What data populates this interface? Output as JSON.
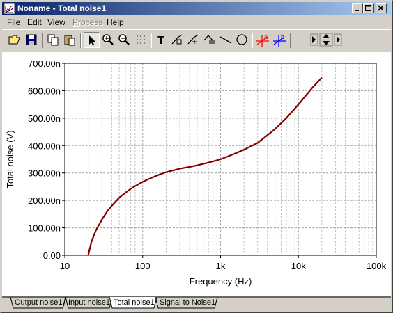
{
  "window": {
    "title": "Noname - Total noise1"
  },
  "menu": [
    {
      "label": "File",
      "disabled": false
    },
    {
      "label": "Edit",
      "disabled": false
    },
    {
      "label": "View",
      "disabled": false
    },
    {
      "label": "Process",
      "disabled": true
    },
    {
      "label": "Help",
      "disabled": false
    }
  ],
  "toolbar": {
    "buttons": [
      "open-icon",
      "save-icon",
      "copy-icon",
      "paste-icon",
      "pointer-icon",
      "zoom-in-icon",
      "zoom-out-icon",
      "grid-icon",
      "text-icon",
      "cursor-tool-1-icon",
      "cursor-tool-2-icon",
      "cursor-tool-3-icon",
      "line-icon",
      "circle-icon",
      "cursor-a-icon",
      "cursor-b-icon",
      "move-arrows-icon"
    ],
    "text_tool_glyph": "T",
    "cursor_a_label": "a",
    "cursor_b_label": "b",
    "colors": {
      "cursor_a": "#ff0000",
      "cursor_b": "#0000ff"
    }
  },
  "tabs": [
    {
      "label": "Output noise1",
      "active": false
    },
    {
      "label": "Input noise1",
      "active": false
    },
    {
      "label": "Total noise1",
      "active": true
    },
    {
      "label": "Signal to Noise1",
      "active": false
    }
  ],
  "chart_data": {
    "type": "line",
    "title": "",
    "xlabel": "Frequency (Hz)",
    "ylabel": "Total noise (V)",
    "xscale": "log",
    "xlim": [
      10,
      100000
    ],
    "ylim": [
      0,
      700
    ],
    "x_ticks": [
      10,
      100,
      1000,
      10000,
      100000
    ],
    "x_tick_labels": [
      "10",
      "100",
      "1k",
      "10k",
      "100k"
    ],
    "y_ticks": [
      0,
      100,
      200,
      300,
      400,
      500,
      600,
      700
    ],
    "y_tick_labels": [
      "0.00",
      "100.00n",
      "200.00n",
      "300.00n",
      "400.00n",
      "500.00n",
      "600.00n",
      "700.00n"
    ],
    "grid": true,
    "line_color": "#800000",
    "series": [
      {
        "x": [
          20,
          22,
          25,
          30,
          35,
          40,
          50,
          60,
          70,
          80,
          100,
          120,
          150,
          200,
          250,
          300,
          400,
          500,
          700,
          1000,
          1500,
          2000,
          3000,
          4000,
          5000,
          7000,
          10000,
          15000,
          20000
        ],
        "y": [
          0,
          50,
          90,
          130,
          160,
          180,
          210,
          228,
          242,
          252,
          268,
          278,
          290,
          303,
          310,
          316,
          322,
          328,
          338,
          350,
          370,
          385,
          410,
          438,
          460,
          500,
          550,
          610,
          648
        ]
      }
    ]
  }
}
